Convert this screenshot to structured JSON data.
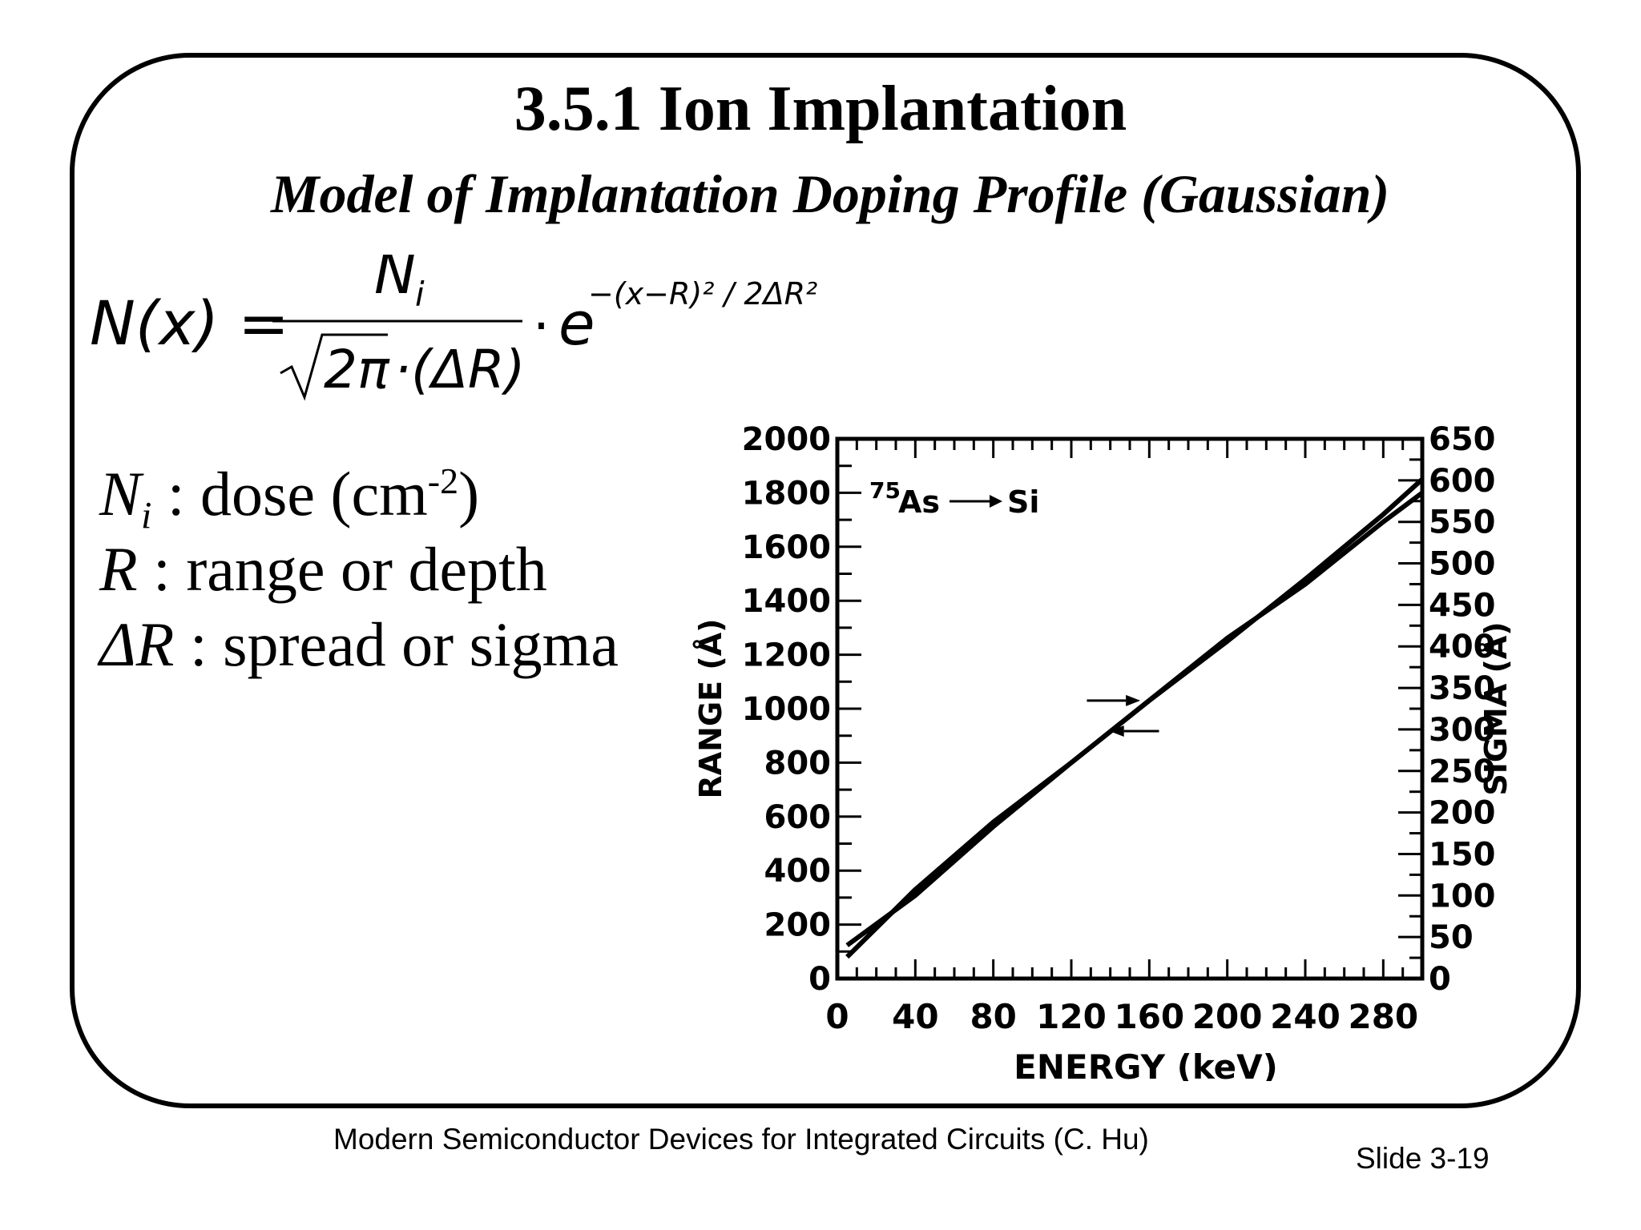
{
  "slide": {
    "title": "3.5.1  Ion Implantation",
    "subtitle": "Model of Implantation Doping Profile (Gaussian)",
    "formula": {
      "lhs": "N(x) =",
      "num": "N",
      "num_sub": "i",
      "den_root": "2π",
      "den_rest": "·(ΔR)",
      "dot": "·",
      "base": "e",
      "exponent": "−(x−R)² / 2ΔR²"
    },
    "definitions": [
      {
        "symbol": "N",
        "sub": "i",
        "text": " : dose (cm",
        "sup": "-2",
        "tail": ")"
      },
      {
        "symbol": "R",
        "text": " : range or depth"
      },
      {
        "symbol": "ΔR",
        "text": " : spread or sigma"
      }
    ],
    "footer_book": "Modern Semiconductor Devices for Integrated Circuits (C. Hu)",
    "footer_slide": "Slide 3-19"
  },
  "chart_data": {
    "type": "line",
    "annotation": "75As → Si",
    "annotation_mass": "75",
    "annotation_text": "As",
    "annotation_target": "Si",
    "xlabel": "ENERGY (keV)",
    "ylabel": "RANGE (Å)",
    "y2label": "SIGMA (Å)",
    "xlim": [
      0,
      300
    ],
    "ylim": [
      0,
      2000
    ],
    "y2lim": [
      0,
      650
    ],
    "x_ticks": [
      "0",
      "40",
      "80",
      "120",
      "160",
      "200",
      "240",
      "280"
    ],
    "y_ticks": [
      "0",
      "200",
      "400",
      "600",
      "800",
      "1000",
      "1200",
      "1400",
      "1600",
      "1800",
      "2000"
    ],
    "y2_ticks": [
      "0",
      "50",
      "100",
      "150",
      "200",
      "250",
      "300",
      "350",
      "400",
      "450",
      "500",
      "550",
      "600",
      "650"
    ],
    "grid": false,
    "series": [
      {
        "axis": "left",
        "x": [
          5,
          40,
          80,
          120,
          160,
          200,
          240,
          280,
          300
        ],
        "y": [
          80,
          330,
          580,
          800,
          1030,
          1250,
          1480,
          1720,
          1850
        ]
      },
      {
        "axis": "right",
        "x": [
          5,
          40,
          80,
          120,
          160,
          200,
          240,
          280,
          300
        ],
        "y": [
          40,
          100,
          183,
          260,
          335,
          410,
          475,
          550,
          585
        ]
      }
    ]
  }
}
